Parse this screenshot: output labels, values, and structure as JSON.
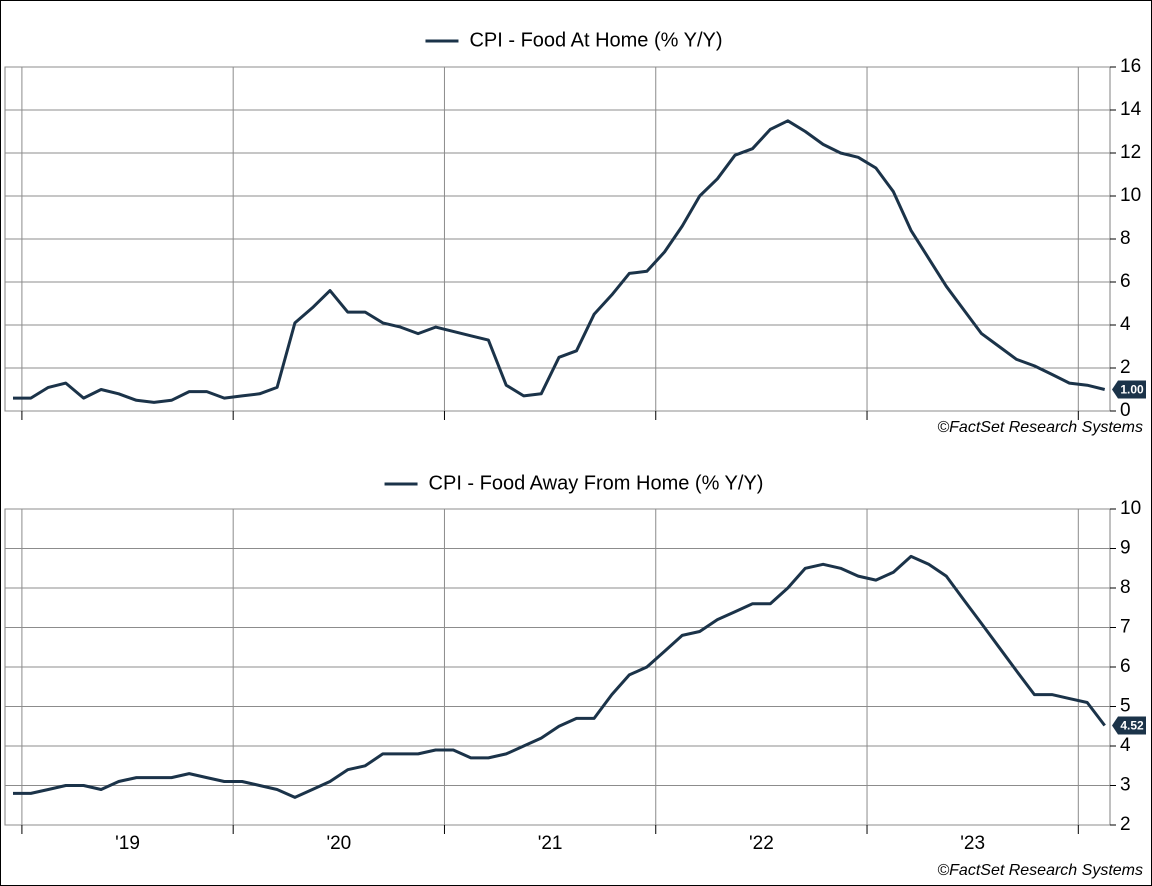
{
  "chart_data": [
    {
      "type": "line",
      "title": "CPI - Food At Home (% Y/Y)",
      "source": "©FactSet Research Systems",
      "xlim": [
        2018.92,
        2024.15
      ],
      "xticks": [
        2019,
        2020,
        2021,
        2022,
        2023,
        2024
      ],
      "ylim": [
        0,
        16
      ],
      "yticks": [
        0,
        2,
        4,
        6,
        8,
        10,
        12,
        14,
        16
      ],
      "grid": true,
      "x": [
        2018.958,
        2019.042,
        2019.125,
        2019.208,
        2019.292,
        2019.375,
        2019.458,
        2019.542,
        2019.625,
        2019.708,
        2019.792,
        2019.875,
        2019.958,
        2020.042,
        2020.125,
        2020.208,
        2020.292,
        2020.375,
        2020.458,
        2020.542,
        2020.625,
        2020.708,
        2020.792,
        2020.875,
        2020.958,
        2021.042,
        2021.125,
        2021.208,
        2021.292,
        2021.375,
        2021.458,
        2021.542,
        2021.625,
        2021.708,
        2021.792,
        2021.875,
        2021.958,
        2022.042,
        2022.125,
        2022.208,
        2022.292,
        2022.375,
        2022.458,
        2022.542,
        2022.625,
        2022.708,
        2022.792,
        2022.875,
        2022.958,
        2023.042,
        2023.125,
        2023.208,
        2023.292,
        2023.375,
        2023.458,
        2023.542,
        2023.625,
        2023.708,
        2023.792,
        2023.875,
        2023.958,
        2024.042,
        2024.125
      ],
      "series": [
        {
          "name": "CPI - Food At Home (% Y/Y)",
          "color": "#1b3349",
          "values": [
            0.6,
            0.6,
            1.1,
            1.3,
            0.6,
            1.0,
            0.8,
            0.5,
            0.4,
            0.5,
            0.9,
            0.9,
            0.6,
            0.7,
            0.8,
            1.1,
            4.1,
            4.8,
            5.6,
            4.6,
            4.6,
            4.1,
            3.9,
            3.6,
            3.9,
            3.7,
            3.5,
            3.3,
            1.2,
            0.7,
            0.8,
            2.5,
            2.8,
            4.5,
            5.4,
            6.4,
            6.5,
            7.4,
            8.6,
            10.0,
            10.8,
            11.9,
            12.2,
            13.1,
            13.5,
            13.0,
            12.4,
            12.0,
            11.8,
            11.3,
            10.2,
            8.4,
            7.1,
            5.8,
            4.7,
            3.6,
            3.0,
            2.4,
            2.1,
            1.7,
            1.3,
            1.2,
            1.0
          ],
          "value_labels": [
            null,
            null,
            null,
            null,
            null,
            null,
            null,
            null,
            null,
            null,
            null,
            null,
            null,
            null,
            null,
            null,
            null,
            null,
            null,
            null,
            null,
            null,
            null,
            null,
            null,
            null,
            null,
            null,
            null,
            null,
            null,
            null,
            null,
            null,
            null,
            null,
            null,
            null,
            null,
            null,
            null,
            null,
            null,
            null,
            null,
            null,
            null,
            null,
            null,
            null,
            null,
            null,
            null,
            null,
            null,
            null,
            null,
            null,
            null,
            null,
            null,
            null,
            "1.00"
          ]
        }
      ]
    },
    {
      "type": "line",
      "title": "CPI - Food Away From Home (% Y/Y)",
      "source": "©FactSet Research Systems",
      "xlim": [
        2018.92,
        2024.15
      ],
      "xticks": [
        2019,
        2020,
        2021,
        2022,
        2023,
        2024
      ],
      "xtick_labels": [
        {
          "value": 2019.5,
          "label": "'19"
        },
        {
          "value": 2020.5,
          "label": "'20"
        },
        {
          "value": 2021.5,
          "label": "'21"
        },
        {
          "value": 2022.5,
          "label": "'22"
        },
        {
          "value": 2023.5,
          "label": "'23"
        }
      ],
      "ylim": [
        2,
        10
      ],
      "yticks": [
        2,
        3,
        4,
        5,
        6,
        7,
        8,
        9,
        10
      ],
      "grid": true,
      "x": [
        2018.958,
        2019.042,
        2019.125,
        2019.208,
        2019.292,
        2019.375,
        2019.458,
        2019.542,
        2019.625,
        2019.708,
        2019.792,
        2019.875,
        2019.958,
        2020.042,
        2020.125,
        2020.208,
        2020.292,
        2020.375,
        2020.458,
        2020.542,
        2020.625,
        2020.708,
        2020.792,
        2020.875,
        2020.958,
        2021.042,
        2021.125,
        2021.208,
        2021.292,
        2021.375,
        2021.458,
        2021.542,
        2021.625,
        2021.708,
        2021.792,
        2021.875,
        2021.958,
        2022.042,
        2022.125,
        2022.208,
        2022.292,
        2022.375,
        2022.458,
        2022.542,
        2022.625,
        2022.708,
        2022.792,
        2022.875,
        2022.958,
        2023.042,
        2023.125,
        2023.208,
        2023.292,
        2023.375,
        2023.458,
        2023.542,
        2023.625,
        2023.708,
        2023.792,
        2023.875,
        2023.958,
        2024.042,
        2024.125
      ],
      "series": [
        {
          "name": "CPI - Food Away From Home (% Y/Y)",
          "color": "#1b3349",
          "values": [
            2.8,
            2.8,
            2.9,
            3.0,
            3.0,
            2.9,
            3.1,
            3.2,
            3.2,
            3.2,
            3.3,
            3.2,
            3.1,
            3.1,
            3.0,
            2.9,
            2.7,
            2.9,
            3.1,
            3.4,
            3.5,
            3.8,
            3.8,
            3.8,
            3.9,
            3.9,
            3.7,
            3.7,
            3.8,
            4.0,
            4.2,
            4.5,
            4.7,
            4.7,
            5.3,
            5.8,
            6.0,
            6.4,
            6.8,
            6.9,
            7.2,
            7.4,
            7.6,
            7.6,
            8.0,
            8.5,
            8.6,
            8.5,
            8.3,
            8.2,
            8.4,
            8.8,
            8.6,
            8.3,
            7.7,
            7.1,
            6.5,
            5.9,
            5.3,
            5.3,
            5.2,
            5.1,
            4.52
          ],
          "value_labels": [
            null,
            null,
            null,
            null,
            null,
            null,
            null,
            null,
            null,
            null,
            null,
            null,
            null,
            null,
            null,
            null,
            null,
            null,
            null,
            null,
            null,
            null,
            null,
            null,
            null,
            null,
            null,
            null,
            null,
            null,
            null,
            null,
            null,
            null,
            null,
            null,
            null,
            null,
            null,
            null,
            null,
            null,
            null,
            null,
            null,
            null,
            null,
            null,
            null,
            null,
            null,
            null,
            null,
            null,
            null,
            null,
            null,
            null,
            null,
            null,
            null,
            null,
            "4.52"
          ]
        }
      ]
    }
  ]
}
